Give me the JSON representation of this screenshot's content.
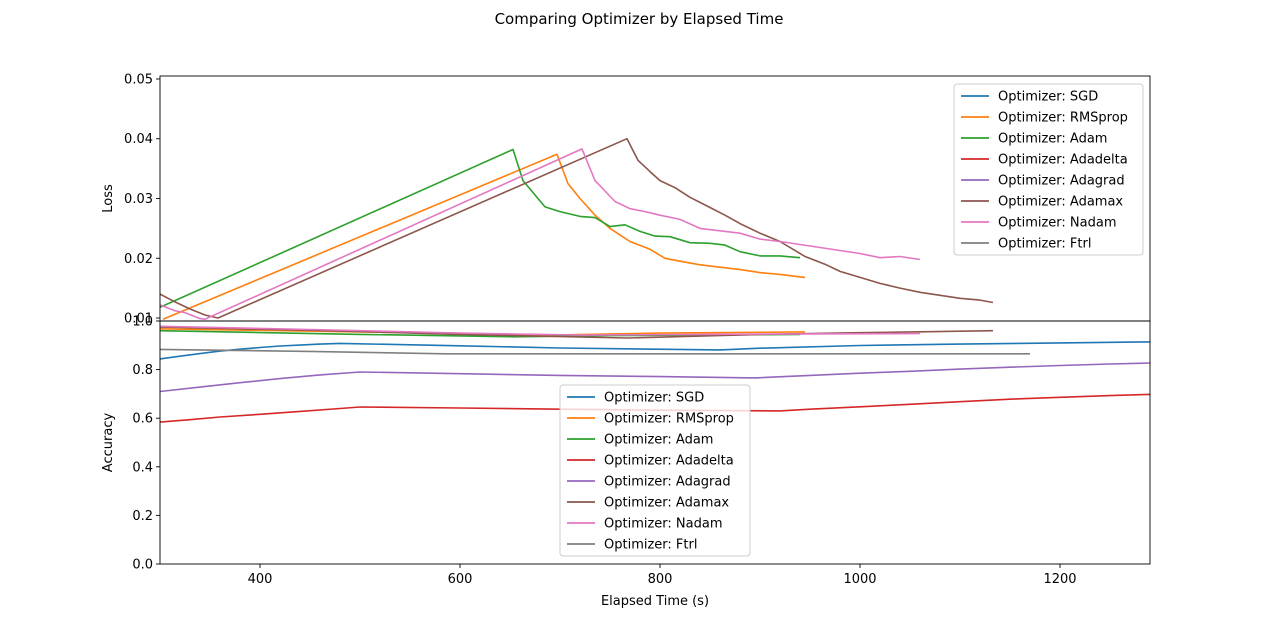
{
  "chart_data": {
    "title": "Comparing Optimizer by Elapsed Time",
    "xlabel": "Elapsed Time (s)",
    "xlim": [
      300,
      1290
    ],
    "x_ticks": [
      400,
      600,
      800,
      1000,
      1200
    ],
    "colors": {
      "SGD": "#1f77b4",
      "RMSprop": "#ff7f0e",
      "Adam": "#2ca02c",
      "Adadelta": "#d62728",
      "Adagrad": "#9467bd",
      "Adamax": "#8c564b",
      "Nadam": "#e377c2",
      "Ftrl": "#7f7f7f"
    },
    "subplots": [
      {
        "type": "line",
        "ylabel": "Loss",
        "ylim": [
          0.0095,
          0.0505
        ],
        "y_ticks": [
          0.01,
          0.02,
          0.03,
          0.04,
          0.05
        ],
        "y_tick_labels": [
          "0.01",
          "0.02",
          "0.03",
          "0.04",
          "0.05"
        ],
        "legend_position": "upper-right",
        "series": [
          {
            "name": "Optimizer: SGD",
            "key": "SGD",
            "points": []
          },
          {
            "name": "Optimizer: RMSprop",
            "key": "RMSprop",
            "points": [
              [
                303,
                0.0098
              ],
              [
                697,
                0.0374
              ],
              [
                708,
                0.0325
              ],
              [
                720,
                0.03
              ],
              [
                735,
                0.0272
              ],
              [
                750,
                0.025
              ],
              [
                770,
                0.0228
              ],
              [
                790,
                0.0215
              ],
              [
                805,
                0.02
              ],
              [
                820,
                0.0195
              ],
              [
                840,
                0.0189
              ],
              [
                860,
                0.0185
              ],
              [
                880,
                0.0181
              ],
              [
                900,
                0.0176
              ],
              [
                920,
                0.0173
              ],
              [
                945,
                0.0168
              ]
            ]
          },
          {
            "name": "Optimizer: Adam",
            "key": "Adam",
            "points": [
              [
                300,
                0.0118
              ],
              [
                653,
                0.0382
              ],
              [
                663,
                0.033
              ],
              [
                685,
                0.0286
              ],
              [
                700,
                0.0278
              ],
              [
                720,
                0.027
              ],
              [
                735,
                0.0268
              ],
              [
                750,
                0.0253
              ],
              [
                765,
                0.0256
              ],
              [
                780,
                0.0245
              ],
              [
                795,
                0.0237
              ],
              [
                810,
                0.0236
              ],
              [
                830,
                0.0226
              ],
              [
                850,
                0.0225
              ],
              [
                865,
                0.0222
              ],
              [
                880,
                0.0211
              ],
              [
                900,
                0.0204
              ],
              [
                920,
                0.0204
              ],
              [
                940,
                0.0201
              ]
            ]
          },
          {
            "name": "Optimizer: Adadelta",
            "key": "Adadelta",
            "points": []
          },
          {
            "name": "Optimizer: Adagrad",
            "key": "Adagrad",
            "points": []
          },
          {
            "name": "Optimizer: Adamax",
            "key": "Adamax",
            "points": [
              [
                300,
                0.014
              ],
              [
                315,
                0.0127
              ],
              [
                330,
                0.0115
              ],
              [
                345,
                0.0105
              ],
              [
                358,
                0.01
              ],
              [
                767,
                0.04
              ],
              [
                778,
                0.0364
              ],
              [
                790,
                0.0345
              ],
              [
                800,
                0.033
              ],
              [
                815,
                0.0318
              ],
              [
                830,
                0.0302
              ],
              [
                850,
                0.0285
              ],
              [
                865,
                0.0272
              ],
              [
                880,
                0.0258
              ],
              [
                900,
                0.0242
              ],
              [
                920,
                0.0228
              ],
              [
                945,
                0.0203
              ],
              [
                965,
                0.019
              ],
              [
                980,
                0.0178
              ],
              [
                1000,
                0.0168
              ],
              [
                1020,
                0.0158
              ],
              [
                1040,
                0.015
              ],
              [
                1060,
                0.0143
              ],
              [
                1080,
                0.0138
              ],
              [
                1100,
                0.0133
              ],
              [
                1120,
                0.013
              ],
              [
                1133,
                0.0126
              ]
            ]
          },
          {
            "name": "Optimizer: Nadam",
            "key": "Nadam",
            "points": [
              [
                300,
                0.0122
              ],
              [
                315,
                0.0112
              ],
              [
                325,
                0.0109
              ],
              [
                340,
                0.0099
              ],
              [
                345,
                0.0098
              ],
              [
                722,
                0.0383
              ],
              [
                735,
                0.033
              ],
              [
                755,
                0.0295
              ],
              [
                770,
                0.0283
              ],
              [
                785,
                0.0278
              ],
              [
                800,
                0.0272
              ],
              [
                820,
                0.0265
              ],
              [
                840,
                0.025
              ],
              [
                860,
                0.0246
              ],
              [
                880,
                0.0242
              ],
              [
                900,
                0.0232
              ],
              [
                920,
                0.0228
              ],
              [
                940,
                0.0223
              ],
              [
                960,
                0.0218
              ],
              [
                980,
                0.0213
              ],
              [
                1000,
                0.0208
              ],
              [
                1020,
                0.0201
              ],
              [
                1040,
                0.0203
              ],
              [
                1060,
                0.0198
              ]
            ]
          },
          {
            "name": "Optimizer: Ftrl",
            "key": "Ftrl",
            "points": []
          }
        ]
      },
      {
        "type": "line",
        "ylabel": "Accuracy",
        "ylim": [
          0.0,
          1.0
        ],
        "y_ticks": [
          0.0,
          0.2,
          0.4,
          0.6,
          0.8,
          1.0
        ],
        "y_tick_labels": [
          "0.0",
          "0.2",
          "0.4",
          "0.6",
          "0.8",
          "1.0"
        ],
        "legend_position": "center",
        "series": [
          {
            "name": "Optimizer: SGD",
            "key": "SGD",
            "points": [
              [
                300,
                0.844
              ],
              [
                320,
                0.855
              ],
              [
                340,
                0.866
              ],
              [
                360,
                0.876
              ],
              [
                380,
                0.884
              ],
              [
                400,
                0.891
              ],
              [
                420,
                0.897
              ],
              [
                440,
                0.901
              ],
              [
                460,
                0.905
              ],
              [
                480,
                0.908
              ],
              [
                600,
                0.898
              ],
              [
                700,
                0.889
              ],
              [
                860,
                0.881
              ],
              [
                900,
                0.888
              ],
              [
                1000,
                0.899
              ],
              [
                1100,
                0.905
              ],
              [
                1200,
                0.91
              ],
              [
                1290,
                0.914
              ]
            ]
          },
          {
            "name": "Optimizer: RMSprop",
            "key": "RMSprop",
            "points": [
              [
                300,
                0.968
              ],
              [
                500,
                0.955
              ],
              [
                697,
                0.943
              ],
              [
                800,
                0.95
              ],
              [
                945,
                0.955
              ]
            ]
          },
          {
            "name": "Optimizer: Adam",
            "key": "Adam",
            "points": [
              [
                300,
                0.96
              ],
              [
                500,
                0.945
              ],
              [
                653,
                0.935
              ],
              [
                750,
                0.94
              ],
              [
                940,
                0.945
              ]
            ]
          },
          {
            "name": "Optimizer: Adadelta",
            "key": "Adadelta",
            "points": [
              [
                300,
                0.584
              ],
              [
                330,
                0.594
              ],
              [
                360,
                0.605
              ],
              [
                400,
                0.616
              ],
              [
                440,
                0.628
              ],
              [
                480,
                0.64
              ],
              [
                500,
                0.646
              ],
              [
                600,
                0.642
              ],
              [
                700,
                0.637
              ],
              [
                800,
                0.633
              ],
              [
                920,
                0.63
              ],
              [
                950,
                0.637
              ],
              [
                1000,
                0.647
              ],
              [
                1050,
                0.657
              ],
              [
                1100,
                0.668
              ],
              [
                1150,
                0.678
              ],
              [
                1200,
                0.686
              ],
              [
                1250,
                0.693
              ],
              [
                1290,
                0.698
              ]
            ]
          },
          {
            "name": "Optimizer: Adagrad",
            "key": "Adagrad",
            "points": [
              [
                300,
                0.71
              ],
              [
                340,
                0.728
              ],
              [
                380,
                0.746
              ],
              [
                420,
                0.763
              ],
              [
                460,
                0.778
              ],
              [
                500,
                0.79
              ],
              [
                600,
                0.783
              ],
              [
                700,
                0.776
              ],
              [
                800,
                0.771
              ],
              [
                895,
                0.766
              ],
              [
                950,
                0.776
              ],
              [
                1000,
                0.785
              ],
              [
                1050,
                0.793
              ],
              [
                1100,
                0.802
              ],
              [
                1150,
                0.81
              ],
              [
                1200,
                0.817
              ],
              [
                1250,
                0.823
              ],
              [
                1290,
                0.827
              ]
            ]
          },
          {
            "name": "Optimizer: Adamax",
            "key": "Adamax",
            "points": [
              [
                300,
                0.975
              ],
              [
                450,
                0.962
              ],
              [
                600,
                0.945
              ],
              [
                767,
                0.93
              ],
              [
                900,
                0.945
              ],
              [
                1000,
                0.952
              ],
              [
                1133,
                0.96
              ]
            ]
          },
          {
            "name": "Optimizer: Nadam",
            "key": "Nadam",
            "points": [
              [
                300,
                0.978
              ],
              [
                450,
                0.965
              ],
              [
                600,
                0.95
              ],
              [
                722,
                0.942
              ],
              [
                900,
                0.946
              ],
              [
                1060,
                0.948
              ]
            ]
          },
          {
            "name": "Optimizer: Ftrl",
            "key": "Ftrl",
            "points": [
              [
                300,
                0.883
              ],
              [
                450,
                0.875
              ],
              [
                585,
                0.865
              ],
              [
                800,
                0.865
              ],
              [
                1170,
                0.865
              ]
            ]
          }
        ]
      }
    ]
  }
}
